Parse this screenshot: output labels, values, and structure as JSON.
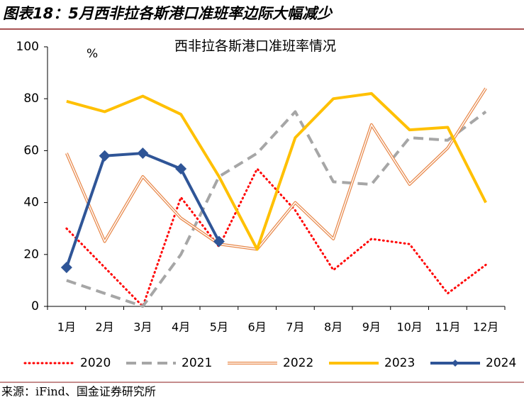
{
  "chart_data": {
    "type": "line",
    "caption": "图表18：5月西非拉各斯港口准班率边际大幅减少",
    "title": "西非拉各斯港口准班率情况",
    "unit_label": "%",
    "source": "来源：iFind、国金证券研究所",
    "categories": [
      "1月",
      "2月",
      "3月",
      "4月",
      "5月",
      "6月",
      "7月",
      "8月",
      "9月",
      "10月",
      "11月",
      "12月"
    ],
    "ylim": [
      0,
      100
    ],
    "yticks": [
      0,
      20,
      40,
      60,
      80,
      100
    ],
    "grid": false,
    "series": [
      {
        "name": "2020",
        "color": "#ff0000",
        "style": "dotted",
        "values": [
          30,
          15,
          0,
          42,
          23,
          53,
          37,
          14,
          26,
          24,
          5,
          16
        ]
      },
      {
        "name": "2021",
        "color": "#a6a6a6",
        "style": "dashed",
        "values": [
          10,
          5,
          0,
          20,
          50,
          59,
          75,
          48,
          47,
          65,
          64,
          75
        ]
      },
      {
        "name": "2022",
        "color": "#e8884a",
        "style": "double",
        "values": [
          59,
          25,
          50,
          34,
          24,
          22,
          40,
          26,
          70,
          47,
          61,
          84
        ]
      },
      {
        "name": "2023",
        "color": "#ffc000",
        "style": "solid",
        "values": [
          79,
          75,
          81,
          74,
          50,
          22,
          65,
          80,
          82,
          68,
          69,
          40
        ]
      },
      {
        "name": "2024",
        "color": "#2f5597",
        "style": "diamond",
        "values": [
          15,
          58,
          59,
          53,
          25,
          null,
          null,
          null,
          null,
          null,
          null,
          null
        ]
      }
    ]
  }
}
